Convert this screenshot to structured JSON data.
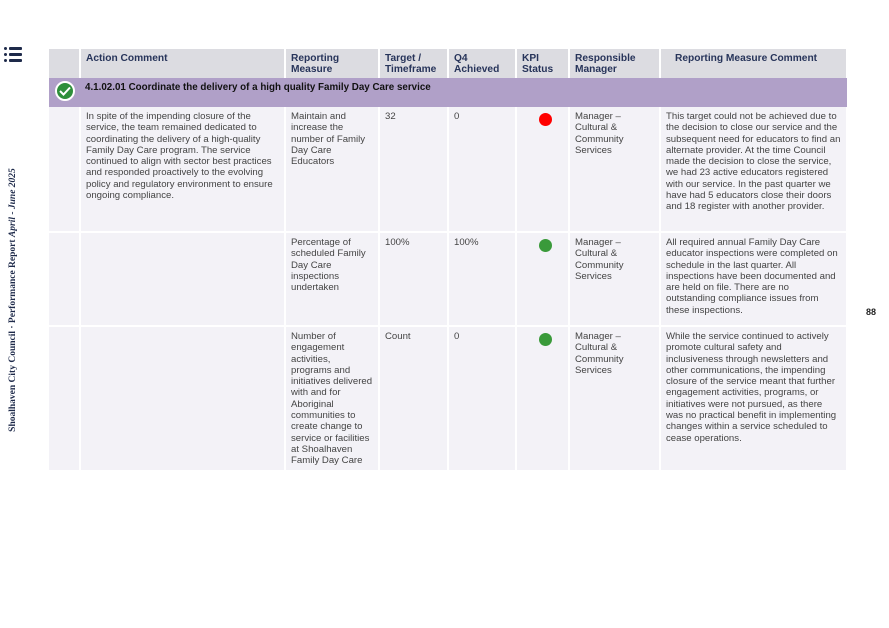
{
  "side_label": {
    "main": "Shoalhaven City Council · Performance Report",
    "period": "April - June 2025"
  },
  "page_number": "88",
  "icons": {
    "menu": "list-icon",
    "status": "check-circle-icon"
  },
  "colors": {
    "red": "#ff0000",
    "green": "#3a9a3a",
    "title_row": "#b0a0c8"
  },
  "table": {
    "headers": [
      "Action Comment",
      "Reporting Measure",
      "Target / Timeframe",
      "Q4 Achieved",
      "KPI Status",
      "Responsible Manager",
      "Reporting Measure Comment"
    ],
    "action_title": "4.1.02.01 Coordinate the delivery of a high quality Family Day Care service",
    "action_comment": "In spite of the impending closure of the service, the team remained dedicated to coordinating the delivery of a high-quality Family Day Care program. The service continued to align with sector best practices and responded proactively to the evolving policy and regulatory environment to ensure ongoing compliance.",
    "rows": [
      {
        "measure": "Maintain and increase the number of Family Day Care Educators",
        "target": "32",
        "q4": "0",
        "kpi": "red",
        "manager": "Manager – Cultural & Community Services",
        "comment": "This target could not be achieved due to the decision to close our service and the subsequent need for educators to find an alternate provider. At the time Council made the decision to close the service, we had 23 active educators registered with our service.  In the past quarter we have had 5 educators close their doors and 18 register with another provider."
      },
      {
        "measure": "Percentage of scheduled Family Day Care inspections undertaken",
        "target": "100%",
        "q4": "100%",
        "kpi": "green",
        "manager": "Manager – Cultural & Community Services",
        "comment": "All required annual Family Day Care educator inspections were completed on schedule in the last quarter. All inspections have been documented and are held on file. There are no outstanding compliance issues from these inspections."
      },
      {
        "measure": "Number of engagement activities, programs and initiatives delivered with and for Aboriginal communities to create change to service or facilities at Shoalhaven Family Day Care",
        "target": "Count",
        "q4": "0",
        "kpi": "green",
        "manager": "Manager – Cultural & Community Services",
        "comment": "While the service continued to actively promote cultural safety and inclusiveness through newsletters and other communications, the impending closure of the service meant that further engagement activities, programs, or initiatives were not pursued, as there was no practical benefit in implementing changes within a service scheduled to cease operations."
      }
    ]
  }
}
